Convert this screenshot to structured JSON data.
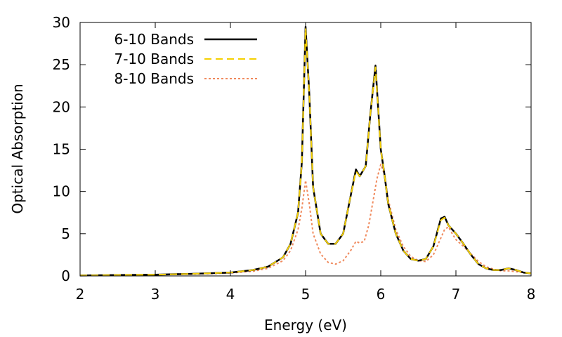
{
  "chart_data": {
    "type": "line",
    "title": "",
    "xlabel": "Energy (eV)",
    "ylabel": "Optical Absorption",
    "xlim": [
      2,
      8
    ],
    "ylim": [
      0,
      30
    ],
    "xticks": [
      "2",
      "3",
      "4",
      "5",
      "6",
      "7",
      "8"
    ],
    "yticks": [
      "0",
      "5",
      "10",
      "15",
      "20",
      "25",
      "30"
    ],
    "grid": false,
    "legend_position": "top-left",
    "series": [
      {
        "name": "6-10 Bands",
        "color": "#000000",
        "dash": "solid",
        "x": [
          2.0,
          2.5,
          3.0,
          3.5,
          4.0,
          4.3,
          4.5,
          4.7,
          4.8,
          4.9,
          4.95,
          5.0,
          5.05,
          5.1,
          5.2,
          5.3,
          5.4,
          5.5,
          5.6,
          5.67,
          5.72,
          5.8,
          5.86,
          5.93,
          6.0,
          6.05,
          6.1,
          6.2,
          6.3,
          6.4,
          6.5,
          6.6,
          6.7,
          6.8,
          6.85,
          6.9,
          6.95,
          7.0,
          7.1,
          7.2,
          7.3,
          7.4,
          7.5,
          7.6,
          7.7,
          7.8,
          7.9,
          8.0
        ],
        "values": [
          0.05,
          0.1,
          0.15,
          0.25,
          0.4,
          0.7,
          1.1,
          2.2,
          3.8,
          7.5,
          13.5,
          29.5,
          21.5,
          10.5,
          5.0,
          3.8,
          3.8,
          5.0,
          9.5,
          12.6,
          11.8,
          13.0,
          19.0,
          24.9,
          15.0,
          12.0,
          8.5,
          5.0,
          3.0,
          2.0,
          1.8,
          2.0,
          3.5,
          6.8,
          7.0,
          6.0,
          5.5,
          5.0,
          3.8,
          2.5,
          1.4,
          0.9,
          0.7,
          0.7,
          0.9,
          0.7,
          0.4,
          0.3
        ]
      },
      {
        "name": "7-10 Bands",
        "color": "#f5d000",
        "dash": "dashed",
        "x": [
          2.0,
          2.5,
          3.0,
          3.5,
          4.0,
          4.3,
          4.5,
          4.7,
          4.8,
          4.9,
          4.95,
          5.0,
          5.05,
          5.1,
          5.2,
          5.3,
          5.4,
          5.5,
          5.6,
          5.67,
          5.72,
          5.8,
          5.86,
          5.93,
          6.0,
          6.05,
          6.1,
          6.2,
          6.3,
          6.4,
          6.5,
          6.6,
          6.7,
          6.8,
          6.85,
          6.9,
          6.95,
          7.0,
          7.1,
          7.2,
          7.3,
          7.4,
          7.5,
          7.6,
          7.7,
          7.8,
          7.9,
          8.0
        ],
        "values": [
          0.05,
          0.1,
          0.15,
          0.25,
          0.4,
          0.7,
          1.1,
          2.2,
          3.8,
          7.5,
          13.5,
          29.3,
          21.5,
          10.5,
          5.0,
          3.8,
          3.8,
          5.0,
          9.5,
          12.4,
          11.8,
          13.0,
          19.0,
          24.7,
          15.0,
          12.0,
          8.5,
          5.0,
          3.0,
          2.0,
          1.8,
          2.0,
          3.5,
          6.6,
          6.9,
          6.0,
          5.5,
          5.0,
          3.8,
          2.5,
          1.4,
          0.9,
          0.7,
          0.7,
          0.9,
          0.7,
          0.4,
          0.3
        ]
      },
      {
        "name": "8-10 Bands",
        "color": "#f08a5d",
        "dash": "dotted",
        "x": [
          2.0,
          2.5,
          3.0,
          3.5,
          4.0,
          4.3,
          4.5,
          4.7,
          4.8,
          4.9,
          4.95,
          5.0,
          5.05,
          5.1,
          5.2,
          5.3,
          5.4,
          5.5,
          5.6,
          5.67,
          5.72,
          5.78,
          5.84,
          5.9,
          5.95,
          6.0,
          6.05,
          6.1,
          6.2,
          6.3,
          6.4,
          6.5,
          6.6,
          6.7,
          6.8,
          6.85,
          6.9,
          6.95,
          7.0,
          7.1,
          7.2,
          7.3,
          7.4,
          7.5,
          7.6,
          7.7,
          7.8,
          7.9,
          8.0
        ],
        "values": [
          0.05,
          0.1,
          0.15,
          0.2,
          0.35,
          0.55,
          0.9,
          1.8,
          3.0,
          5.5,
          8.0,
          11.3,
          8.5,
          5.0,
          2.6,
          1.6,
          1.4,
          1.8,
          3.0,
          4.1,
          3.9,
          4.1,
          6.0,
          9.0,
          11.5,
          13.2,
          12.0,
          9.0,
          5.5,
          3.5,
          2.3,
          1.8,
          1.7,
          2.5,
          4.5,
          5.5,
          5.8,
          5.0,
          4.3,
          3.5,
          2.6,
          1.7,
          1.1,
          0.8,
          0.6,
          0.6,
          0.5,
          0.4,
          0.3
        ]
      }
    ]
  }
}
